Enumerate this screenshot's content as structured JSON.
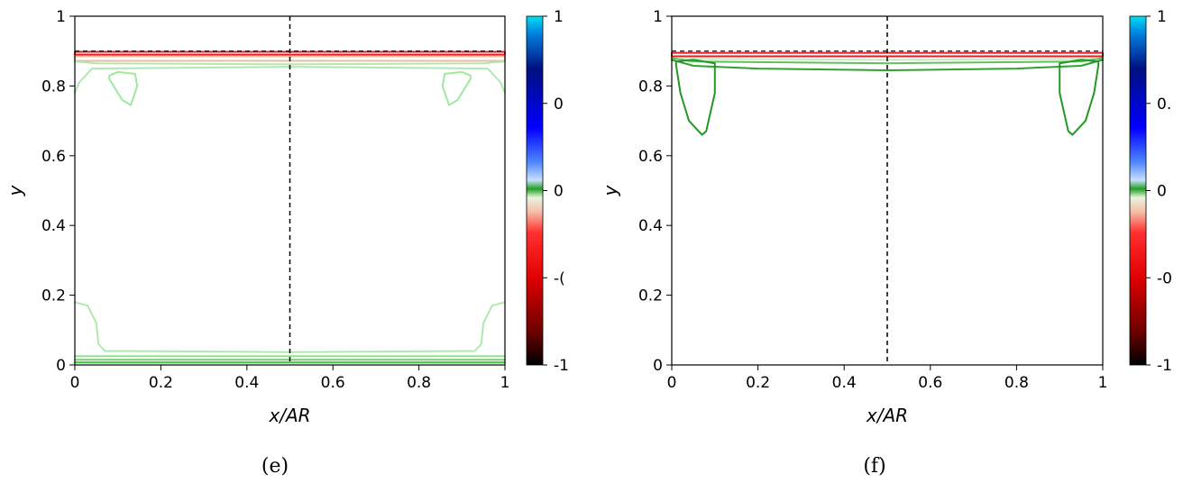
{
  "chart_data": [
    {
      "panel": "(e)",
      "type": "contour",
      "xlabel": "x/AR",
      "ylabel": "y",
      "xlim": [
        0,
        1
      ],
      "ylim": [
        0,
        1
      ],
      "x_ticks": [
        "0",
        "0.2",
        "0.4",
        "0.6",
        "0.8",
        "1"
      ],
      "y_ticks": [
        "0",
        "0.2",
        "0.4",
        "0.6",
        "0.8",
        "1"
      ],
      "interface_y": 0.9,
      "midline_x": 0.5,
      "colorbar_ticks": [
        "1",
        "0",
        "0",
        "-(",
        "-1"
      ],
      "contours": [
        {
          "name": "top-red-band",
          "points": [
            [
              0,
              0.898
            ],
            [
              1,
              0.898
            ],
            [
              1,
              0.89
            ],
            [
              0,
              0.89
            ]
          ],
          "color": "#e02020",
          "closed": true
        },
        {
          "name": "top-pink-band",
          "points": [
            [
              0,
              0.885
            ],
            [
              1,
              0.885
            ],
            [
              1,
              0.872
            ],
            [
              0,
              0.872
            ]
          ],
          "color": "#f0b8a0",
          "closed": true
        },
        {
          "name": "top-light-green-1",
          "points": [
            [
              0,
              0.87
            ],
            [
              0.05,
              0.865
            ],
            [
              0.5,
              0.862
            ],
            [
              0.95,
              0.865
            ],
            [
              1,
              0.87
            ]
          ],
          "color": "#b0e8b0"
        },
        {
          "name": "top-light-green-2",
          "points": [
            [
              0,
              0.78
            ],
            [
              0.01,
              0.81
            ],
            [
              0.04,
              0.85
            ],
            [
              0.5,
              0.855
            ],
            [
              0.96,
              0.85
            ],
            [
              0.99,
              0.81
            ],
            [
              1,
              0.78
            ]
          ],
          "color": "#b0e8b0"
        },
        {
          "name": "left-vortex",
          "points": [
            [
              0.08,
              0.83
            ],
            [
              0.1,
              0.84
            ],
            [
              0.14,
              0.835
            ],
            [
              0.145,
              0.8
            ],
            [
              0.13,
              0.745
            ],
            [
              0.11,
              0.76
            ],
            [
              0.08,
              0.82
            ]
          ],
          "color": "#a0e8a0",
          "closed": true
        },
        {
          "name": "right-vortex",
          "points": [
            [
              0.92,
              0.83
            ],
            [
              0.9,
              0.84
            ],
            [
              0.86,
              0.835
            ],
            [
              0.855,
              0.8
            ],
            [
              0.87,
              0.745
            ],
            [
              0.89,
              0.76
            ],
            [
              0.92,
              0.82
            ]
          ],
          "color": "#a0e8a0",
          "closed": true
        },
        {
          "name": "bottom-green-loop",
          "points": [
            [
              0,
              0.18
            ],
            [
              0.03,
              0.17
            ],
            [
              0.05,
              0.12
            ],
            [
              0.055,
              0.06
            ],
            [
              0.07,
              0.04
            ],
            [
              0.5,
              0.037
            ],
            [
              0.93,
              0.04
            ],
            [
              0.945,
              0.06
            ],
            [
              0.95,
              0.12
            ],
            [
              0.97,
              0.17
            ],
            [
              1,
              0.18
            ]
          ],
          "color": "#b0e8b0"
        },
        {
          "name": "bottom-line-1",
          "points": [
            [
              0,
              0.025
            ],
            [
              1,
              0.025
            ]
          ],
          "color": "#90e090"
        },
        {
          "name": "bottom-line-2",
          "points": [
            [
              0,
              0.015
            ],
            [
              1,
              0.015
            ]
          ],
          "color": "#70d070"
        },
        {
          "name": "bottom-line-3",
          "points": [
            [
              0,
              0.007
            ],
            [
              1,
              0.007
            ]
          ],
          "color": "#40c040"
        }
      ]
    },
    {
      "panel": "(f)",
      "type": "contour",
      "xlabel": "x/AR",
      "ylabel": "y",
      "xlim": [
        0,
        1
      ],
      "ylim": [
        0,
        1
      ],
      "x_ticks": [
        "0",
        "0.2",
        "0.4",
        "0.6",
        "0.8",
        "1"
      ],
      "y_ticks": [
        "0",
        "0.2",
        "0.4",
        "0.6",
        "0.8",
        "1"
      ],
      "interface_y": 0.9,
      "midline_x": 0.5,
      "colorbar_ticks": [
        "1",
        "0.",
        "0",
        "-0",
        "-1"
      ],
      "contours": [
        {
          "name": "top-red-band",
          "points": [
            [
              0,
              0.895
            ],
            [
              1,
              0.895
            ],
            [
              1,
              0.885
            ],
            [
              0,
              0.885
            ]
          ],
          "color": "#e02020",
          "closed": true
        },
        {
          "name": "top-light-band",
          "points": [
            [
              0.02,
              0.878
            ],
            [
              0.5,
              0.875
            ],
            [
              0.98,
              0.878
            ]
          ],
          "color": "#c8e8c0"
        },
        {
          "name": "top-green-1",
          "points": [
            [
              0,
              0.88
            ],
            [
              0.05,
              0.87
            ],
            [
              0.5,
              0.865
            ],
            [
              0.95,
              0.87
            ],
            [
              1,
              0.88
            ]
          ],
          "color": "#60c060"
        },
        {
          "name": "top-green-2",
          "points": [
            [
              0,
              0.875
            ],
            [
              0.05,
              0.858
            ],
            [
              0.2,
              0.85
            ],
            [
              0.5,
              0.845
            ],
            [
              0.8,
              0.85
            ],
            [
              0.95,
              0.858
            ],
            [
              1,
              0.875
            ]
          ],
          "color": "#30a030"
        },
        {
          "name": "left-vortex",
          "points": [
            [
              0.01,
              0.87
            ],
            [
              0.05,
              0.875
            ],
            [
              0.1,
              0.865
            ],
            [
              0.1,
              0.78
            ],
            [
              0.08,
              0.67
            ],
            [
              0.07,
              0.66
            ],
            [
              0.04,
              0.7
            ],
            [
              0.02,
              0.78
            ],
            [
              0.01,
              0.86
            ]
          ],
          "color": "#229922",
          "closed": true
        },
        {
          "name": "right-vortex",
          "points": [
            [
              0.99,
              0.87
            ],
            [
              0.95,
              0.875
            ],
            [
              0.9,
              0.865
            ],
            [
              0.9,
              0.78
            ],
            [
              0.92,
              0.67
            ],
            [
              0.93,
              0.66
            ],
            [
              0.96,
              0.7
            ],
            [
              0.98,
              0.78
            ],
            [
              0.99,
              0.86
            ]
          ],
          "color": "#229922",
          "closed": true
        }
      ]
    }
  ]
}
